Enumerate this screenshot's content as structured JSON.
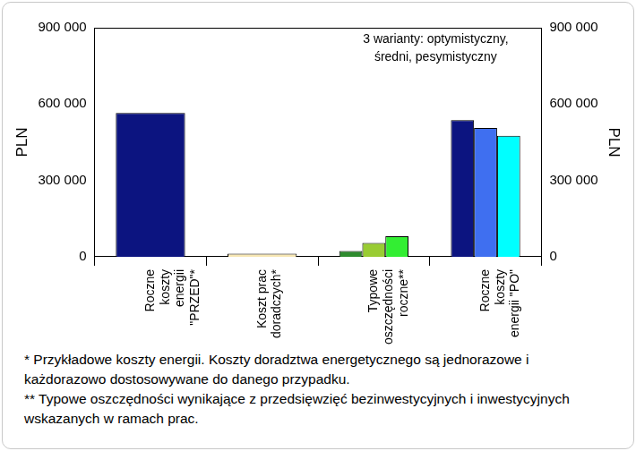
{
  "chart_data": {
    "type": "bar",
    "categories": [
      "Roczne\nkoszty\nenergii\n\"PRZED\"*",
      "Koszt prac\ndoradczych*",
      "Typowe\noszczędności\nroczne**",
      "Roczne\nkoszty\nenergii \"PO\""
    ],
    "series": [
      {
        "values": [
          565000,
          12000,
          23000,
          537000
        ],
        "colors": [
          "#0c1480",
          "#f7e7b4",
          "#2e8b2e",
          "#0c1480"
        ]
      },
      {
        "values": [
          null,
          null,
          54000,
          506000
        ],
        "colors": [
          null,
          null,
          "#99cc33",
          "#3f6ff0"
        ]
      },
      {
        "values": [
          null,
          null,
          81000,
          475000
        ],
        "colors": [
          null,
          null,
          "#33ee33",
          "#00ffff"
        ]
      }
    ],
    "y_label": "PLN",
    "ylim": [
      0,
      900000
    ],
    "yticks": [
      0,
      {
        "value": 300000,
        "label": "300 000"
      },
      {
        "value": 600000,
        "label": "600 000"
      },
      {
        "value": 900000,
        "label": "900 000"
      }
    ],
    "y2_label": "PLN",
    "y2lim": [
      0,
      900000
    ],
    "y2ticks": [
      0,
      {
        "value": 300000,
        "label": "300 000"
      },
      {
        "value": 600000,
        "label": "600 000"
      },
      {
        "value": 900000,
        "label": "900 000"
      }
    ],
    "annotation": [
      "3 warianty: optymistyczny,",
      "średni, pesymistyczny"
    ],
    "footnotes": [
      "* Przykładowe koszty energii. Koszty doradztwa energetycznego są jednorazowe i każdorazowo dostosowywane do danego przypadku.",
      "** Typowe oszczędności wynikające z przedsięwzięć bezinwestycyjnych i inwestycyjnych wskazanych w ramach prac."
    ],
    "grid": false,
    "data_labels": false
  }
}
